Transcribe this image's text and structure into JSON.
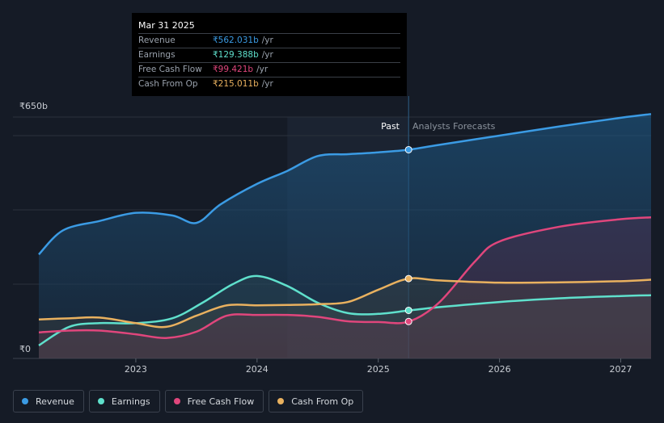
{
  "tooltip": {
    "date": "Mar 31 2025",
    "rows": [
      {
        "label": "Revenue",
        "value": "₹562.031b",
        "unit": "/yr",
        "color": "#3b9be4"
      },
      {
        "label": "Earnings",
        "value": "₹129.388b",
        "unit": "/yr",
        "color": "#5fe0cc"
      },
      {
        "label": "Free Cash Flow",
        "value": "₹99.421b",
        "unit": "/yr",
        "color": "#e0467c"
      },
      {
        "label": "Cash From Op",
        "value": "₹215.011b",
        "unit": "/yr",
        "color": "#e9b15f"
      }
    ]
  },
  "labels": {
    "past": "Past",
    "forecast": "Analysts Forecasts"
  },
  "legend": [
    {
      "label": "Revenue",
      "color": "#3b9be4"
    },
    {
      "label": "Earnings",
      "color": "#5fe0cc"
    },
    {
      "label": "Free Cash Flow",
      "color": "#e0467c"
    },
    {
      "label": "Cash From Op",
      "color": "#e9b15f"
    }
  ],
  "chart_data": {
    "type": "area",
    "title": "",
    "ylabel_top": "₹650b",
    "ylabel_bottom": "₹0",
    "ylim": [
      0,
      650
    ],
    "xlim": [
      2022.2,
      2027.25
    ],
    "x_ticks": [
      2023,
      2024,
      2025,
      2026,
      2027
    ],
    "x_tick_labels": [
      "2023",
      "2024",
      "2025",
      "2026",
      "2027"
    ],
    "past_end_x": 2025.25,
    "forecast_band_start_x": 2024.25,
    "series": [
      {
        "name": "Revenue",
        "color": "#3b9be4",
        "points": [
          [
            2022.2,
            280
          ],
          [
            2022.4,
            345
          ],
          [
            2022.7,
            370
          ],
          [
            2023.0,
            392
          ],
          [
            2023.3,
            385
          ],
          [
            2023.5,
            365
          ],
          [
            2023.7,
            415
          ],
          [
            2024.0,
            470
          ],
          [
            2024.25,
            505
          ],
          [
            2024.5,
            545
          ],
          [
            2024.75,
            550
          ],
          [
            2025.0,
            555
          ],
          [
            2025.25,
            562
          ],
          [
            2025.5,
            575
          ],
          [
            2026.0,
            600
          ],
          [
            2026.5,
            625
          ],
          [
            2027.0,
            648
          ],
          [
            2027.25,
            658
          ]
        ],
        "marker_x": 2025.25,
        "marker_y": 562.031
      },
      {
        "name": "Earnings",
        "color": "#5fe0cc",
        "points": [
          [
            2022.2,
            35
          ],
          [
            2022.45,
            85
          ],
          [
            2022.7,
            95
          ],
          [
            2023.0,
            95
          ],
          [
            2023.3,
            108
          ],
          [
            2023.55,
            150
          ],
          [
            2023.8,
            200
          ],
          [
            2024.0,
            222
          ],
          [
            2024.25,
            195
          ],
          [
            2024.5,
            150
          ],
          [
            2024.75,
            122
          ],
          [
            2025.0,
            120
          ],
          [
            2025.25,
            129
          ],
          [
            2025.5,
            138
          ],
          [
            2026.0,
            152
          ],
          [
            2026.5,
            162
          ],
          [
            2027.0,
            168
          ],
          [
            2027.25,
            170
          ]
        ],
        "marker_x": 2025.25,
        "marker_y": 129.388
      },
      {
        "name": "Free Cash Flow",
        "color": "#e0467c",
        "points": [
          [
            2022.2,
            70
          ],
          [
            2022.45,
            75
          ],
          [
            2022.7,
            75
          ],
          [
            2023.0,
            65
          ],
          [
            2023.25,
            55
          ],
          [
            2023.5,
            72
          ],
          [
            2023.75,
            115
          ],
          [
            2024.0,
            117
          ],
          [
            2024.25,
            117
          ],
          [
            2024.5,
            112
          ],
          [
            2024.75,
            100
          ],
          [
            2025.0,
            98
          ],
          [
            2025.25,
            99
          ],
          [
            2025.5,
            150
          ],
          [
            2025.8,
            262
          ],
          [
            2026.0,
            315
          ],
          [
            2026.5,
            355
          ],
          [
            2027.0,
            375
          ],
          [
            2027.25,
            380
          ]
        ],
        "marker_x": 2025.25,
        "marker_y": 99.421
      },
      {
        "name": "Cash From Op",
        "color": "#e9b15f",
        "points": [
          [
            2022.2,
            105
          ],
          [
            2022.45,
            108
          ],
          [
            2022.7,
            110
          ],
          [
            2023.0,
            95
          ],
          [
            2023.25,
            85
          ],
          [
            2023.5,
            115
          ],
          [
            2023.75,
            143
          ],
          [
            2024.0,
            143
          ],
          [
            2024.25,
            144
          ],
          [
            2024.5,
            146
          ],
          [
            2024.75,
            152
          ],
          [
            2025.0,
            185
          ],
          [
            2025.25,
            215
          ],
          [
            2025.5,
            210
          ],
          [
            2026.0,
            204
          ],
          [
            2026.5,
            205
          ],
          [
            2027.0,
            208
          ],
          [
            2027.25,
            212
          ]
        ],
        "marker_x": 2025.25,
        "marker_y": 215.011
      }
    ]
  }
}
